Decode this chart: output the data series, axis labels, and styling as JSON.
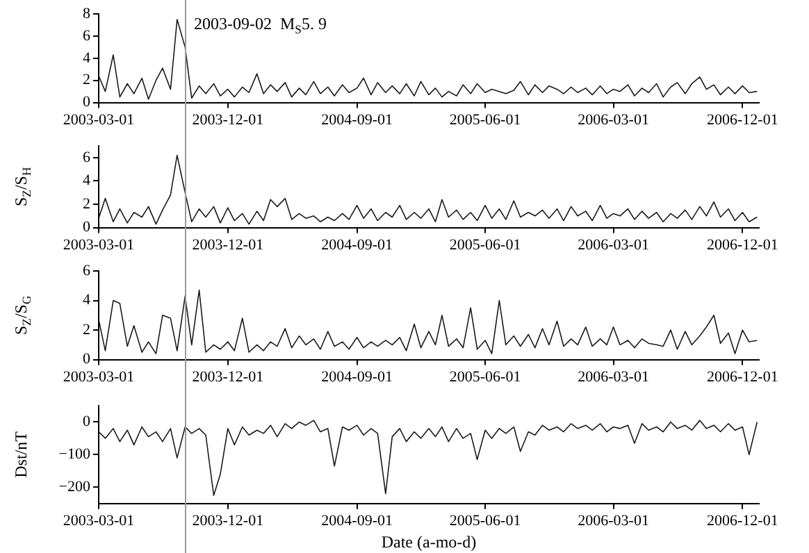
{
  "chart_data": [
    {
      "type": "line",
      "color": "#1a1a1a",
      "x": [
        "2003-03-01",
        "2003-03-15",
        "2003-04-01",
        "2003-04-15",
        "2003-05-01",
        "2003-05-15",
        "2003-06-01",
        "2003-06-15",
        "2003-07-01",
        "2003-07-15",
        "2003-08-01",
        "2003-08-15",
        "2003-09-01",
        "2003-09-15",
        "2003-10-01",
        "2003-10-15",
        "2003-11-01",
        "2003-11-15",
        "2003-12-01",
        "2003-12-15",
        "2004-01-01",
        "2004-01-15",
        "2004-02-01",
        "2004-02-15",
        "2004-03-01",
        "2004-03-15",
        "2004-04-01",
        "2004-04-15",
        "2004-05-01",
        "2004-05-15",
        "2004-06-01",
        "2004-06-15",
        "2004-07-01",
        "2004-07-15",
        "2004-08-01",
        "2004-08-15",
        "2004-09-01",
        "2004-09-15",
        "2004-10-01",
        "2004-10-15",
        "2004-11-01",
        "2004-11-15",
        "2004-12-01",
        "2004-12-15",
        "2005-01-01",
        "2005-01-15",
        "2005-02-01",
        "2005-02-15",
        "2005-03-01",
        "2005-03-15",
        "2005-04-01",
        "2005-04-15",
        "2005-05-01",
        "2005-05-15",
        "2005-06-01",
        "2005-06-15",
        "2005-07-01",
        "2005-07-15",
        "2005-08-01",
        "2005-08-15",
        "2005-09-01",
        "2005-09-15",
        "2005-10-01",
        "2005-10-15",
        "2005-11-01",
        "2005-11-15",
        "2005-12-01",
        "2005-12-15",
        "2006-01-01",
        "2006-01-15",
        "2006-02-01",
        "2006-02-15",
        "2006-03-01",
        "2006-03-15",
        "2006-04-01",
        "2006-04-15",
        "2006-05-01",
        "2006-05-15",
        "2006-06-01",
        "2006-06-15",
        "2006-07-01",
        "2006-07-15",
        "2006-08-01",
        "2006-08-15",
        "2006-09-01",
        "2006-09-15",
        "2006-10-01",
        "2006-10-15",
        "2006-11-01",
        "2006-11-15",
        "2006-12-01",
        "2006-12-15",
        "2007-01-01"
      ],
      "values": [
        2.4,
        1.0,
        4.3,
        0.5,
        1.7,
        0.8,
        2.2,
        0.3,
        2.0,
        3.1,
        1.2,
        7.5,
        5.0,
        0.4,
        1.5,
        0.8,
        1.7,
        0.6,
        1.2,
        0.5,
        1.4,
        0.9,
        2.6,
        0.8,
        1.6,
        1.0,
        1.8,
        0.5,
        1.3,
        0.7,
        1.9,
        0.8,
        1.4,
        0.6,
        1.6,
        0.9,
        1.3,
        2.2,
        0.7,
        1.8,
        0.9,
        1.5,
        0.8,
        1.7,
        0.6,
        1.9,
        0.7,
        1.3,
        0.5,
        1.0,
        0.6,
        1.6,
        0.8,
        1.7,
        0.9,
        1.2,
        1.0,
        0.8,
        1.1,
        1.9,
        0.7,
        1.6,
        0.9,
        1.5,
        1.2,
        0.8,
        1.4,
        0.9,
        1.3,
        0.7,
        1.5,
        0.8,
        1.2,
        1.0,
        1.6,
        0.6,
        1.3,
        0.9,
        1.7,
        0.5,
        1.4,
        1.8,
        0.8,
        1.7,
        2.3,
        1.2,
        1.6,
        0.7,
        1.4,
        0.8,
        1.5,
        0.9,
        1.0
      ],
      "xlim": [
        "2003-03-01",
        "2007-01-05"
      ],
      "xticks": [
        "2003-03-01",
        "2003-12-01",
        "2004-09-01",
        "2005-06-01",
        "2006-03-01",
        "2006-12-01"
      ],
      "ylim": [
        0,
        8
      ],
      "yticks": [
        0,
        2,
        4,
        6,
        8
      ],
      "ref_lines": [
        {
          "axis": "x",
          "value": "2003-09-02",
          "label": "2003-09-02  M$_{S}$5. 9",
          "color": "#999999"
        }
      ]
    },
    {
      "type": "line",
      "color": "#1a1a1a",
      "ylabel": "S$_{Z}$/S$_{H}$",
      "x": [
        "2003-03-01",
        "2003-03-15",
        "2003-04-01",
        "2003-04-15",
        "2003-05-01",
        "2003-05-15",
        "2003-06-01",
        "2003-06-15",
        "2003-07-01",
        "2003-07-15",
        "2003-08-01",
        "2003-08-15",
        "2003-09-01",
        "2003-09-15",
        "2003-10-01",
        "2003-10-15",
        "2003-11-01",
        "2003-11-15",
        "2003-12-01",
        "2003-12-15",
        "2004-01-01",
        "2004-01-15",
        "2004-02-01",
        "2004-02-15",
        "2004-03-01",
        "2004-03-15",
        "2004-04-01",
        "2004-04-15",
        "2004-05-01",
        "2004-05-15",
        "2004-06-01",
        "2004-06-15",
        "2004-07-01",
        "2004-07-15",
        "2004-08-01",
        "2004-08-15",
        "2004-09-01",
        "2004-09-15",
        "2004-10-01",
        "2004-10-15",
        "2004-11-01",
        "2004-11-15",
        "2004-12-01",
        "2004-12-15",
        "2005-01-01",
        "2005-01-15",
        "2005-02-01",
        "2005-02-15",
        "2005-03-01",
        "2005-03-15",
        "2005-04-01",
        "2005-04-15",
        "2005-05-01",
        "2005-05-15",
        "2005-06-01",
        "2005-06-15",
        "2005-07-01",
        "2005-07-15",
        "2005-08-01",
        "2005-08-15",
        "2005-09-01",
        "2005-09-15",
        "2005-10-01",
        "2005-10-15",
        "2005-11-01",
        "2005-11-15",
        "2005-12-01",
        "2005-12-15",
        "2006-01-01",
        "2006-01-15",
        "2006-02-01",
        "2006-02-15",
        "2006-03-01",
        "2006-03-15",
        "2006-04-01",
        "2006-04-15",
        "2006-05-01",
        "2006-05-15",
        "2006-06-01",
        "2006-06-15",
        "2006-07-01",
        "2006-07-15",
        "2006-08-01",
        "2006-08-15",
        "2006-09-01",
        "2006-09-15",
        "2006-10-01",
        "2006-10-15",
        "2006-11-01",
        "2006-11-15",
        "2006-12-01",
        "2006-12-15",
        "2007-01-01"
      ],
      "values": [
        0.8,
        2.5,
        0.5,
        1.6,
        0.4,
        1.3,
        0.9,
        1.8,
        0.3,
        1.5,
        2.8,
        6.2,
        3.0,
        0.5,
        1.6,
        0.9,
        1.8,
        0.4,
        1.7,
        0.6,
        1.2,
        0.3,
        1.4,
        0.6,
        2.4,
        1.8,
        2.5,
        0.7,
        1.2,
        0.8,
        1.0,
        0.5,
        0.9,
        0.6,
        1.2,
        0.7,
        1.9,
        0.8,
        1.6,
        0.6,
        1.3,
        0.9,
        1.9,
        0.7,
        1.3,
        0.8,
        1.6,
        0.5,
        2.4,
        0.9,
        1.5,
        0.7,
        1.3,
        0.6,
        1.9,
        0.8,
        1.6,
        0.7,
        2.3,
        0.9,
        1.3,
        1.0,
        1.5,
        0.8,
        1.6,
        0.6,
        1.8,
        1.0,
        1.4,
        0.6,
        1.9,
        0.8,
        1.2,
        1.0,
        1.6,
        0.7,
        1.4,
        0.8,
        1.3,
        0.5,
        1.2,
        0.8,
        1.5,
        0.7,
        1.8,
        1.0,
        2.2,
        0.9,
        1.6,
        0.6,
        1.3,
        0.5,
        0.9
      ],
      "xlim": [
        "2003-03-01",
        "2007-01-05"
      ],
      "xticks": [
        "2003-03-01",
        "2003-12-01",
        "2004-09-01",
        "2005-06-01",
        "2006-03-01",
        "2006-12-01"
      ],
      "ylim": [
        0,
        7
      ],
      "yticks": [
        0,
        2,
        4,
        6
      ],
      "ref_lines": [
        {
          "axis": "x",
          "value": "2003-09-02",
          "color": "#999999"
        }
      ]
    },
    {
      "type": "line",
      "color": "#1a1a1a",
      "ylabel": "S$_{Z}$/S$_{G}$",
      "x": [
        "2003-03-01",
        "2003-03-15",
        "2003-04-01",
        "2003-04-15",
        "2003-05-01",
        "2003-05-15",
        "2003-06-01",
        "2003-06-15",
        "2003-07-01",
        "2003-07-15",
        "2003-08-01",
        "2003-08-15",
        "2003-09-01",
        "2003-09-15",
        "2003-10-01",
        "2003-10-15",
        "2003-11-01",
        "2003-11-15",
        "2003-12-01",
        "2003-12-15",
        "2004-01-01",
        "2004-01-15",
        "2004-02-01",
        "2004-02-15",
        "2004-03-01",
        "2004-03-15",
        "2004-04-01",
        "2004-04-15",
        "2004-05-01",
        "2004-05-15",
        "2004-06-01",
        "2004-06-15",
        "2004-07-01",
        "2004-07-15",
        "2004-08-01",
        "2004-08-15",
        "2004-09-01",
        "2004-09-15",
        "2004-10-01",
        "2004-10-15",
        "2004-11-01",
        "2004-11-15",
        "2004-12-01",
        "2004-12-15",
        "2005-01-01",
        "2005-01-15",
        "2005-02-01",
        "2005-02-15",
        "2005-03-01",
        "2005-03-15",
        "2005-04-01",
        "2005-04-15",
        "2005-05-01",
        "2005-05-15",
        "2005-06-01",
        "2005-06-15",
        "2005-07-01",
        "2005-07-15",
        "2005-08-01",
        "2005-08-15",
        "2005-09-01",
        "2005-09-15",
        "2005-10-01",
        "2005-10-15",
        "2005-11-01",
        "2005-11-15",
        "2005-12-01",
        "2005-12-15",
        "2006-01-01",
        "2006-01-15",
        "2006-02-01",
        "2006-02-15",
        "2006-03-01",
        "2006-03-15",
        "2006-04-01",
        "2006-04-15",
        "2006-05-01",
        "2006-05-15",
        "2006-06-01",
        "2006-06-15",
        "2006-07-01",
        "2006-07-15",
        "2006-08-01",
        "2006-08-15",
        "2006-09-01",
        "2006-09-15",
        "2006-10-01",
        "2006-10-15",
        "2006-11-01",
        "2006-11-15",
        "2006-12-01",
        "2006-12-15",
        "2007-01-01"
      ],
      "values": [
        2.7,
        0.6,
        4.0,
        3.8,
        0.9,
        2.3,
        0.5,
        1.2,
        0.4,
        3.0,
        2.8,
        0.6,
        4.3,
        1.0,
        4.7,
        0.5,
        1.0,
        0.7,
        1.2,
        0.6,
        2.8,
        0.5,
        1.0,
        0.6,
        1.2,
        0.9,
        2.1,
        0.8,
        1.6,
        1.0,
        1.4,
        0.7,
        1.9,
        0.9,
        1.2,
        0.7,
        1.5,
        0.8,
        1.2,
        0.9,
        1.3,
        1.0,
        1.5,
        0.6,
        2.4,
        0.8,
        1.9,
        1.0,
        3.0,
        0.9,
        1.4,
        0.8,
        3.5,
        0.7,
        1.3,
        0.4,
        4.0,
        1.0,
        1.6,
        0.9,
        1.7,
        0.8,
        2.1,
        1.0,
        2.6,
        0.9,
        1.4,
        1.0,
        2.2,
        0.9,
        1.4,
        1.0,
        2.2,
        1.0,
        1.3,
        0.8,
        1.4,
        1.1,
        1.0,
        0.9,
        2.0,
        0.7,
        1.9,
        1.0,
        1.6,
        2.2,
        3.0,
        1.1,
        1.8,
        0.4,
        2.0,
        1.2,
        1.3
      ],
      "xlim": [
        "2003-03-01",
        "2007-01-05"
      ],
      "xticks": [
        "2003-03-01",
        "2003-12-01",
        "2004-09-01",
        "2005-06-01",
        "2006-03-01",
        "2006-12-01"
      ],
      "ylim": [
        0,
        6
      ],
      "yticks": [
        0,
        2,
        4,
        6
      ],
      "ref_lines": [
        {
          "axis": "x",
          "value": "2003-09-02",
          "color": "#999999"
        }
      ]
    },
    {
      "type": "line",
      "color": "#1a1a1a",
      "ylabel": "Dst/nT",
      "xlabel": "Date (a-mo-d)",
      "x": [
        "2003-03-01",
        "2003-03-15",
        "2003-04-01",
        "2003-04-15",
        "2003-05-01",
        "2003-05-15",
        "2003-06-01",
        "2003-06-15",
        "2003-07-01",
        "2003-07-15",
        "2003-08-01",
        "2003-08-15",
        "2003-09-01",
        "2003-09-15",
        "2003-10-01",
        "2003-10-15",
        "2003-11-01",
        "2003-11-15",
        "2003-12-01",
        "2003-12-15",
        "2004-01-01",
        "2004-01-15",
        "2004-02-01",
        "2004-02-15",
        "2004-03-01",
        "2004-03-15",
        "2004-04-01",
        "2004-04-15",
        "2004-05-01",
        "2004-05-15",
        "2004-06-01",
        "2004-06-15",
        "2004-07-01",
        "2004-07-15",
        "2004-08-01",
        "2004-08-15",
        "2004-09-01",
        "2004-09-15",
        "2004-10-01",
        "2004-10-15",
        "2004-11-01",
        "2004-11-15",
        "2004-12-01",
        "2004-12-15",
        "2005-01-01",
        "2005-01-15",
        "2005-02-01",
        "2005-02-15",
        "2005-03-01",
        "2005-03-15",
        "2005-04-01",
        "2005-04-15",
        "2005-05-01",
        "2005-05-15",
        "2005-06-01",
        "2005-06-15",
        "2005-07-01",
        "2005-07-15",
        "2005-08-01",
        "2005-08-15",
        "2005-09-01",
        "2005-09-15",
        "2005-10-01",
        "2005-10-15",
        "2005-11-01",
        "2005-11-15",
        "2005-12-01",
        "2005-12-15",
        "2006-01-01",
        "2006-01-15",
        "2006-02-01",
        "2006-02-15",
        "2006-03-01",
        "2006-03-15",
        "2006-04-01",
        "2006-04-15",
        "2006-05-01",
        "2006-05-15",
        "2006-06-01",
        "2006-06-15",
        "2006-07-01",
        "2006-07-15",
        "2006-08-01",
        "2006-08-15",
        "2006-09-01",
        "2006-09-15",
        "2006-10-01",
        "2006-10-15",
        "2006-11-01",
        "2006-11-15",
        "2006-12-01",
        "2006-12-15",
        "2007-01-01"
      ],
      "values": [
        -30,
        -50,
        -20,
        -60,
        -25,
        -70,
        -15,
        -45,
        -30,
        -60,
        -20,
        -110,
        -15,
        -35,
        -20,
        -40,
        -225,
        -160,
        -20,
        -70,
        -15,
        -40,
        -25,
        -35,
        -10,
        -45,
        -5,
        -20,
        0,
        -10,
        5,
        -30,
        -20,
        -135,
        -15,
        -25,
        -10,
        -40,
        -20,
        -35,
        -220,
        -45,
        -20,
        -60,
        -30,
        -50,
        -20,
        -45,
        -15,
        -60,
        -20,
        -50,
        -35,
        -115,
        -25,
        -50,
        -20,
        -35,
        -15,
        -90,
        -30,
        -40,
        -10,
        -25,
        -15,
        -30,
        -5,
        -20,
        -10,
        -25,
        -5,
        -30,
        -15,
        -20,
        -10,
        -65,
        -5,
        -25,
        -15,
        -30,
        0,
        -20,
        -10,
        -25,
        5,
        -20,
        -10,
        -30,
        -5,
        -25,
        -15,
        -100,
        0
      ],
      "xlim": [
        "2003-03-01",
        "2007-01-05"
      ],
      "xticks": [
        "2003-03-01",
        "2003-12-01",
        "2004-09-01",
        "2005-06-01",
        "2006-03-01",
        "2006-12-01"
      ],
      "ylim": [
        -250,
        50
      ],
      "yticks": [
        {
          "value": -200,
          "label": "−200"
        },
        {
          "value": -100,
          "label": "−100"
        },
        0
      ],
      "ref_lines": [
        {
          "axis": "x",
          "value": "2003-09-02",
          "color": "#999999"
        }
      ]
    }
  ]
}
